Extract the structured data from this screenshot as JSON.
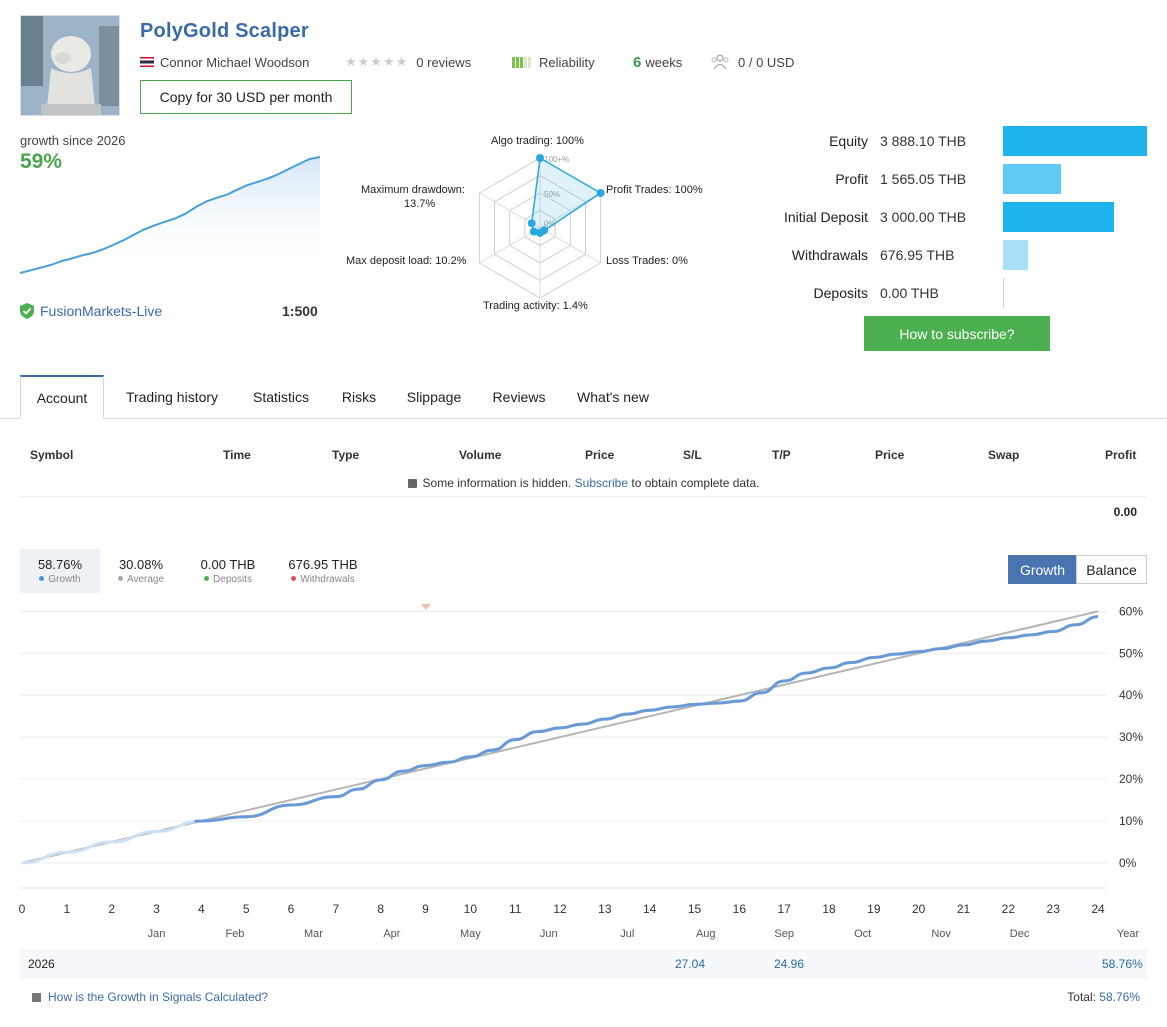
{
  "header": {
    "title": "PolyGold Scalper",
    "author": "Connor Michael Woodson",
    "reviews": "0 reviews",
    "reliability": "Reliability",
    "weeks_num": "6",
    "weeks_label": "weeks",
    "subscribers": "0 / 0 USD",
    "copy_button": "Copy for 30 USD per month"
  },
  "growth_summary": {
    "since": "growth since 2026",
    "percent": "59%",
    "broker": "FusionMarkets-Live",
    "leverage": "1:500",
    "sparkline": [
      0.5,
      1.8,
      3.2,
      4.6,
      6.5,
      7.8,
      9.4,
      10.6,
      12.4,
      14.6,
      17.0,
      19.8,
      22.5,
      24.5,
      26.3,
      28.0,
      30.4,
      33.8,
      36.5,
      38.4,
      40.0,
      42.5,
      44.8,
      46.5,
      48.2,
      50.4,
      53.0,
      55.5,
      58.0,
      59.0
    ]
  },
  "radar": {
    "labels": {
      "algo": "Algo trading: 100%",
      "profit": "Profit Trades: 100%",
      "loss": "Loss Trades: 0%",
      "activity": "Trading activity: 1.4%",
      "load": "Max deposit load: 10.2%",
      "drawdown_1": "Maximum drawdown:",
      "drawdown_2": "13.7%"
    },
    "ticks": [
      "100+%",
      "50%",
      "0%"
    ],
    "values": [
      100,
      100,
      0,
      1.4,
      10.2,
      13.7
    ]
  },
  "account": {
    "rows": [
      {
        "label": "Equity",
        "value": "3 888.10 THB",
        "amount": 3888.1,
        "color": "#1fb3ee"
      },
      {
        "label": "Profit",
        "value": "1 565.05 THB",
        "amount": 1565.05,
        "color": "#5fcaf4"
      },
      {
        "label": "Initial Deposit",
        "value": "3 000.00 THB",
        "amount": 3000.0,
        "color": "#1fb3ee"
      },
      {
        "label": "Withdrawals",
        "value": "676.95 THB",
        "amount": 676.95,
        "color": "#a8e0f8"
      },
      {
        "label": "Deposits",
        "value": "0.00 THB",
        "amount": 0,
        "color": "#d0d0d0"
      }
    ],
    "subscribe_button": "How to subscribe?"
  },
  "tabs": [
    "Account",
    "Trading history",
    "Statistics",
    "Risks",
    "Slippage",
    "Reviews",
    "What's new"
  ],
  "table": {
    "headers": [
      "Symbol",
      "Time",
      "Type",
      "Volume",
      "Price",
      "S/L",
      "T/P",
      "Price",
      "Swap",
      "Profit"
    ],
    "note_prefix": "Some information is hidden.",
    "note_link": "Subscribe",
    "note_suffix": "to obtain complete data.",
    "total_profit": "0.00"
  },
  "stats": {
    "growth": {
      "value": "58.76%",
      "label": "Growth",
      "color": "#4a90d9"
    },
    "average": {
      "value": "30.08%",
      "label": "Average",
      "color": "#aaaaaa"
    },
    "deposits": {
      "value": "0.00 THB",
      "label": "Deposits",
      "color": "#4caf50"
    },
    "withdrawals": {
      "value": "676.95 THB",
      "label": "Withdrawals",
      "color": "#e05050"
    }
  },
  "chart_toggle": {
    "growth": "Growth",
    "balance": "Balance"
  },
  "chart_data": {
    "type": "line",
    "x_ticks": [
      "0",
      "1",
      "2",
      "3",
      "4",
      "5",
      "6",
      "7",
      "8",
      "9",
      "10",
      "11",
      "12",
      "13",
      "14",
      "15",
      "16",
      "17",
      "18",
      "19",
      "20",
      "21",
      "22",
      "23",
      "24"
    ],
    "months": [
      "Jan",
      "Feb",
      "Mar",
      "Apr",
      "May",
      "Jun",
      "Jul",
      "Aug",
      "Sep",
      "Oct",
      "Nov",
      "Dec",
      "Year"
    ],
    "y_ticks": [
      "0%",
      "10%",
      "20%",
      "30%",
      "40%",
      "50%",
      "60%"
    ],
    "ylim": [
      -6,
      62
    ],
    "xlim": [
      0,
      24.2
    ],
    "series": [
      {
        "name": "Growth",
        "color": "#6a9ad6",
        "x": [
          0,
          1,
          2,
          3,
          4,
          5,
          6,
          7,
          7.5,
          8,
          8.5,
          9,
          9.5,
          10,
          10.5,
          11,
          11.5,
          12,
          12.5,
          13,
          13.5,
          14,
          14.5,
          15,
          15.5,
          16,
          16.5,
          17,
          17.5,
          18,
          18.5,
          19,
          19.5,
          20,
          20.5,
          21,
          21.5,
          22,
          22.5,
          23,
          23.5,
          24
        ],
        "y": [
          0,
          2.5,
          5.0,
          7.5,
          10.0,
          11.0,
          13.8,
          15.8,
          17.6,
          19.8,
          21.9,
          23.2,
          24.0,
          25.3,
          26.9,
          29.4,
          31.3,
          32.2,
          33.1,
          34.3,
          35.5,
          36.4,
          37.2,
          37.8,
          38.1,
          38.6,
          40.6,
          43.4,
          45.3,
          46.5,
          47.8,
          49.0,
          49.8,
          50.4,
          51.1,
          52.0,
          52.9,
          53.7,
          54.4,
          55.2,
          56.8,
          58.76
        ]
      },
      {
        "name": "Average",
        "color": "#b5b5b5",
        "x": [
          0,
          24
        ],
        "y": [
          0,
          60.0
        ]
      }
    ]
  },
  "year_row": {
    "year": "2026",
    "aug": "27.04",
    "sep": "24.96",
    "total": "58.76%"
  },
  "footer": {
    "help": "How is the Growth in Signals Calculated?",
    "total_label": "Total:",
    "total_value": "58.76%"
  }
}
